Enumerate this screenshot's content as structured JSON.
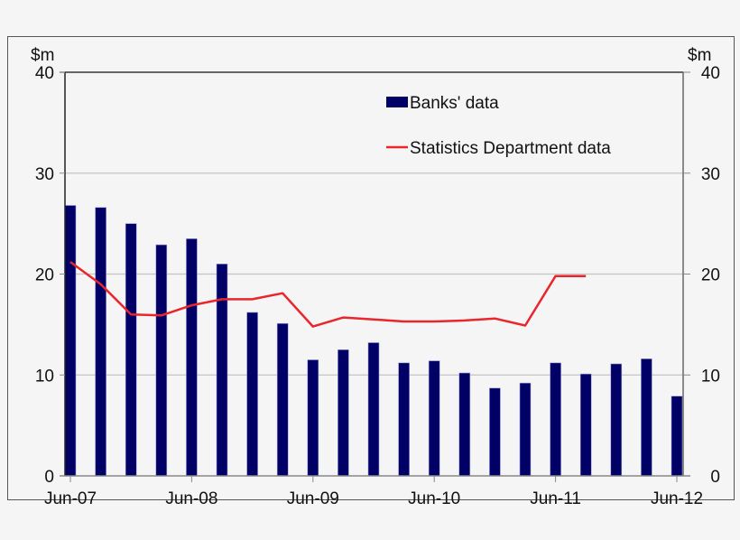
{
  "chart_data": {
    "type": "bar",
    "title": "",
    "xlabel": "",
    "ylabel": "$m",
    "ylabel_right": "$m",
    "ylim": [
      0,
      40
    ],
    "yticks": [
      0,
      10,
      20,
      30,
      40
    ],
    "xtick_labels": [
      "Jun-07",
      "Jun-08",
      "Jun-09",
      "Jun-10",
      "Jun-11",
      "Jun-12"
    ],
    "grid": true,
    "legend_position": "top-right inside",
    "categories": [
      "Jun-07",
      "Sep-07",
      "Dec-07",
      "Mar-08",
      "Jun-08",
      "Sep-08",
      "Dec-08",
      "Mar-09",
      "Jun-09",
      "Sep-09",
      "Dec-09",
      "Mar-10",
      "Jun-10",
      "Sep-10",
      "Dec-10",
      "Mar-11",
      "Jun-11",
      "Sep-11",
      "Dec-11",
      "Mar-12",
      "Jun-12"
    ],
    "series": [
      {
        "name": "Banks' data",
        "type": "bar",
        "color": "#000066",
        "values": [
          26.8,
          26.6,
          25.0,
          22.9,
          23.5,
          21.0,
          16.2,
          15.1,
          11.5,
          12.5,
          13.2,
          11.2,
          11.4,
          10.2,
          8.7,
          9.2,
          11.2,
          10.1,
          11.1,
          11.6,
          7.9
        ]
      },
      {
        "name": "Statistics Department data",
        "type": "line",
        "color": "#e8262b",
        "values": [
          21.2,
          19.0,
          16.0,
          15.9,
          16.9,
          17.5,
          17.5,
          18.1,
          14.8,
          15.7,
          15.5,
          15.3,
          15.3,
          15.4,
          15.6,
          14.9,
          19.8,
          19.8,
          null,
          null,
          null
        ]
      }
    ]
  },
  "axes": {
    "left_unit": "$m",
    "right_unit": "$m",
    "y_labels": [
      "0",
      "10",
      "20",
      "30",
      "40"
    ]
  },
  "legend": {
    "bars_label": "Banks' data",
    "line_label": "Statistics Department data"
  }
}
